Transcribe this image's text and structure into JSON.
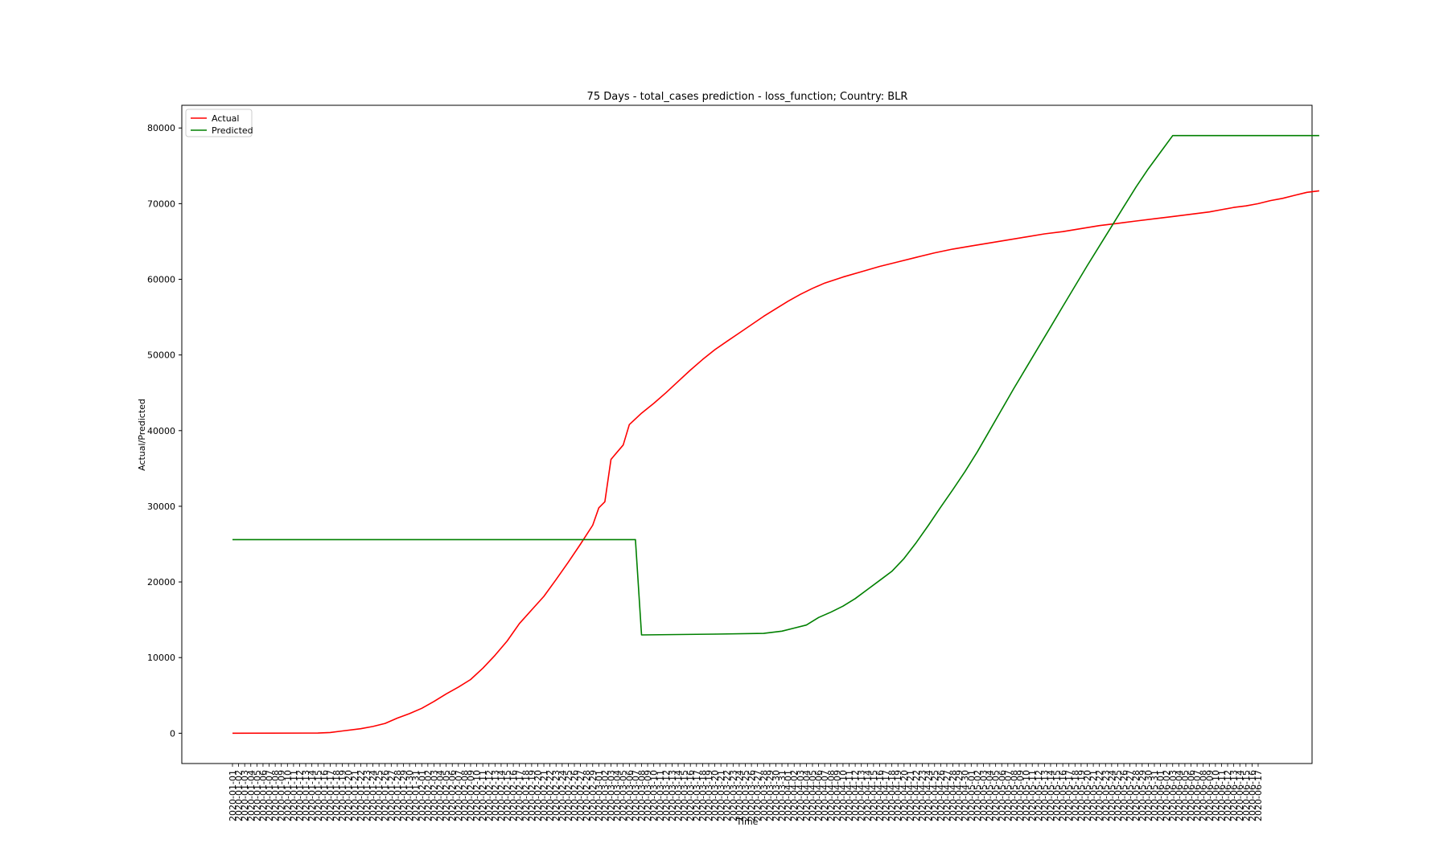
{
  "chart_data": {
    "type": "line",
    "title": "75 Days - total_cases prediction - loss_function; Country: BLR",
    "xlabel": "Time",
    "ylabel": "Actual/Predicted",
    "ylim": [
      -4000,
      83000
    ],
    "yticks": [
      0,
      10000,
      20000,
      30000,
      40000,
      50000,
      60000,
      70000,
      80000
    ],
    "x_start": "2020-01-01",
    "x_end": "2020-06-17",
    "legend": {
      "position": "top-left",
      "entries": [
        "Actual",
        "Predicted"
      ]
    },
    "grid": false,
    "series": [
      {
        "name": "Actual",
        "color": "#ff0000",
        "points": [
          [
            "2020-01-01",
            0
          ],
          [
            "2020-01-15",
            30
          ],
          [
            "2020-01-17",
            100
          ],
          [
            "2020-01-19",
            300
          ],
          [
            "2020-01-22",
            600
          ],
          [
            "2020-01-24",
            900
          ],
          [
            "2020-01-26",
            1300
          ],
          [
            "2020-01-28",
            2000
          ],
          [
            "2020-01-30",
            2600
          ],
          [
            "2020-02-01",
            3300
          ],
          [
            "2020-02-03",
            4200
          ],
          [
            "2020-02-05",
            5200
          ],
          [
            "2020-02-07",
            6100
          ],
          [
            "2020-02-09",
            7100
          ],
          [
            "2020-02-11",
            8600
          ],
          [
            "2020-02-13",
            10300
          ],
          [
            "2020-02-15",
            12200
          ],
          [
            "2020-02-17",
            14500
          ],
          [
            "2020-02-19",
            16300
          ],
          [
            "2020-02-21",
            18100
          ],
          [
            "2020-02-23",
            20300
          ],
          [
            "2020-02-25",
            22600
          ],
          [
            "2020-02-27",
            25000
          ],
          [
            "2020-02-29",
            27500
          ],
          [
            "2020-03-01",
            29800
          ],
          [
            "2020-03-02",
            30600
          ],
          [
            "2020-03-03",
            36200
          ],
          [
            "2020-03-05",
            38100
          ],
          [
            "2020-03-06",
            40800
          ],
          [
            "2020-03-08",
            42300
          ],
          [
            "2020-03-10",
            43600
          ],
          [
            "2020-03-12",
            45000
          ],
          [
            "2020-03-14",
            46500
          ],
          [
            "2020-03-16",
            48000
          ],
          [
            "2020-03-18",
            49400
          ],
          [
            "2020-03-20",
            50700
          ],
          [
            "2020-03-22",
            51800
          ],
          [
            "2020-03-24",
            52900
          ],
          [
            "2020-03-26",
            54000
          ],
          [
            "2020-03-28",
            55100
          ],
          [
            "2020-03-30",
            56100
          ],
          [
            "2020-04-01",
            57100
          ],
          [
            "2020-04-03",
            58000
          ],
          [
            "2020-04-05",
            58800
          ],
          [
            "2020-04-07",
            59500
          ],
          [
            "2020-04-10",
            60300
          ],
          [
            "2020-04-13",
            61000
          ],
          [
            "2020-04-16",
            61700
          ],
          [
            "2020-04-19",
            62300
          ],
          [
            "2020-04-22",
            62900
          ],
          [
            "2020-04-25",
            63500
          ],
          [
            "2020-04-28",
            64000
          ],
          [
            "2020-05-01",
            64400
          ],
          [
            "2020-05-04",
            64800
          ],
          [
            "2020-05-07",
            65200
          ],
          [
            "2020-05-10",
            65600
          ],
          [
            "2020-05-13",
            66000
          ],
          [
            "2020-05-16",
            66300
          ],
          [
            "2020-05-19",
            66700
          ],
          [
            "2020-05-22",
            67100
          ],
          [
            "2020-05-25",
            67400
          ],
          [
            "2020-05-28",
            67700
          ],
          [
            "2020-05-31",
            68000
          ],
          [
            "2020-06-03",
            68300
          ],
          [
            "2020-06-06",
            68600
          ],
          [
            "2020-06-09",
            68900
          ],
          [
            "2020-06-11",
            69200
          ],
          [
            "2020-06-13",
            69500
          ],
          [
            "2020-06-15",
            69700
          ],
          [
            "2020-06-17",
            70000
          ],
          [
            "2020-06-19",
            70400
          ],
          [
            "2020-06-21",
            70700
          ],
          [
            "2020-06-23",
            71100
          ],
          [
            "2020-06-25",
            71500
          ],
          [
            "2020-06-27",
            71700
          ]
        ]
      },
      {
        "name": "Predicted",
        "color": "#008000",
        "points": [
          [
            "2020-01-01",
            25600
          ],
          [
            "2020-03-07",
            25600
          ],
          [
            "2020-03-08",
            13000
          ],
          [
            "2020-03-20",
            13100
          ],
          [
            "2020-03-28",
            13200
          ],
          [
            "2020-03-31",
            13500
          ],
          [
            "2020-04-02",
            13900
          ],
          [
            "2020-04-04",
            14300
          ],
          [
            "2020-04-06",
            15300
          ],
          [
            "2020-04-08",
            16000
          ],
          [
            "2020-04-10",
            16800
          ],
          [
            "2020-04-12",
            17800
          ],
          [
            "2020-04-14",
            19000
          ],
          [
            "2020-04-16",
            20200
          ],
          [
            "2020-04-18",
            21400
          ],
          [
            "2020-04-20",
            23100
          ],
          [
            "2020-04-22",
            25200
          ],
          [
            "2020-04-24",
            27500
          ],
          [
            "2020-04-26",
            29900
          ],
          [
            "2020-04-28",
            32200
          ],
          [
            "2020-04-30",
            34600
          ],
          [
            "2020-05-02",
            37200
          ],
          [
            "2020-05-04",
            40000
          ],
          [
            "2020-05-06",
            42800
          ],
          [
            "2020-05-08",
            45600
          ],
          [
            "2020-05-10",
            48300
          ],
          [
            "2020-05-12",
            51000
          ],
          [
            "2020-05-14",
            53700
          ],
          [
            "2020-05-16",
            56400
          ],
          [
            "2020-05-18",
            59100
          ],
          [
            "2020-05-20",
            61800
          ],
          [
            "2020-05-22",
            64400
          ],
          [
            "2020-05-24",
            67000
          ],
          [
            "2020-05-26",
            69600
          ],
          [
            "2020-05-28",
            72200
          ],
          [
            "2020-05-30",
            74600
          ],
          [
            "2020-06-01",
            76800
          ],
          [
            "2020-06-03",
            79000
          ],
          [
            "2020-06-27",
            79000
          ]
        ]
      }
    ]
  }
}
